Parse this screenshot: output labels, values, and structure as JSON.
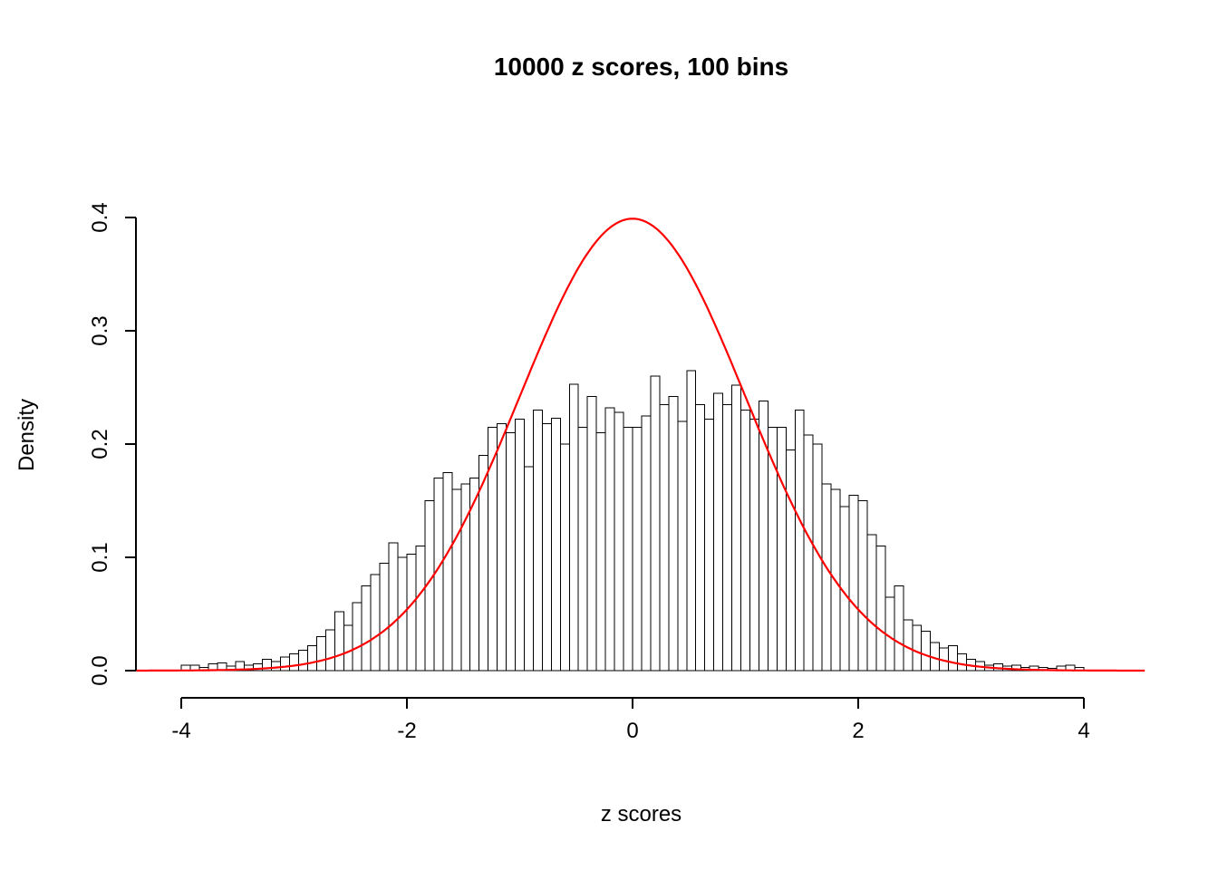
{
  "chart": {
    "title": "10000 z scores, 100 bins",
    "xlabel": "z scores",
    "ylabel": "Density"
  },
  "chart_data": {
    "type": "bar",
    "subtype": "histogram",
    "title": "10000 z scores, 100 bins",
    "xlabel": "z scores",
    "ylabel": "Density",
    "sample_size": 10000,
    "num_bins": 100,
    "bin_start": -4,
    "bin_width": 0.08,
    "xlim": [
      -4.4,
      4.55
    ],
    "ylim": [
      0,
      0.4
    ],
    "grid": false,
    "legend": "none",
    "bar_fill": "#ffffff",
    "bar_stroke": "#000000",
    "x_tick_values": [
      -4,
      -2,
      0,
      2,
      4
    ],
    "x_tick_labels": [
      "-4",
      "-2",
      "0",
      "2",
      "4"
    ],
    "y_tick_values": [
      0,
      0.1,
      0.2,
      0.3,
      0.4
    ],
    "y_tick_labels": [
      "0.0",
      "0.1",
      "0.2",
      "0.3",
      "0.4"
    ],
    "densities": [
      0.005,
      0.005,
      0.003,
      0.006,
      0.007,
      0.004,
      0.008,
      0.005,
      0.006,
      0.01,
      0.008,
      0.012,
      0.015,
      0.018,
      0.022,
      0.03,
      0.036,
      0.052,
      0.04,
      0.06,
      0.075,
      0.085,
      0.095,
      0.113,
      0.1,
      0.103,
      0.11,
      0.15,
      0.17,
      0.175,
      0.16,
      0.165,
      0.17,
      0.19,
      0.215,
      0.218,
      0.21,
      0.222,
      0.18,
      0.23,
      0.218,
      0.223,
      0.2,
      0.253,
      0.215,
      0.242,
      0.21,
      0.232,
      0.228,
      0.215,
      0.215,
      0.225,
      0.26,
      0.235,
      0.242,
      0.22,
      0.265,
      0.235,
      0.222,
      0.245,
      0.235,
      0.252,
      0.23,
      0.222,
      0.238,
      0.215,
      0.215,
      0.195,
      0.23,
      0.208,
      0.2,
      0.165,
      0.16,
      0.145,
      0.155,
      0.15,
      0.12,
      0.11,
      0.065,
      0.075,
      0.045,
      0.04,
      0.035,
      0.025,
      0.02,
      0.022,
      0.015,
      0.01,
      0.008,
      0.005,
      0.006,
      0.004,
      0.005,
      0.003,
      0.004,
      0.003,
      0.002,
      0.004,
      0.005,
      0.003
    ],
    "overlay_curve": {
      "type": "normal-density",
      "mean": 0,
      "sd": 1,
      "color": "#ff0000",
      "x_range": [
        -4.4,
        4.55
      ],
      "peak_density": 0.3989
    }
  }
}
